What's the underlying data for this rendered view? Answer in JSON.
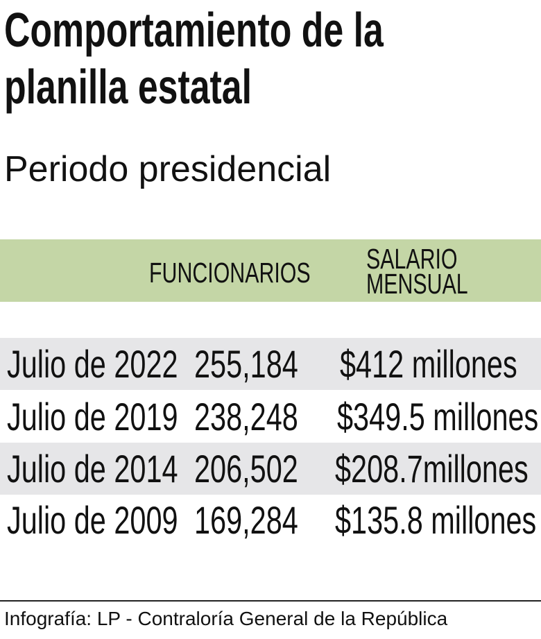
{
  "chart_data": {
    "type": "table",
    "title": "Comportamiento de la planilla estatal",
    "title_lines": [
      "Comportamiento de la",
      "planilla estatal"
    ],
    "subtitle": "Periodo presidencial",
    "columns": [
      "",
      "FUNCIONARIOS",
      "SALARIO MENSUAL"
    ],
    "column_header_lines": {
      "salario": [
        "SALARIO",
        "MENSUAL"
      ]
    },
    "rows": [
      {
        "periodo": "Julio de 2022",
        "funcionarios": "255,184",
        "salario": "$412 millones"
      },
      {
        "periodo": "Julio de 2019",
        "funcionarios": "238,248",
        "salario": "$349.5 millones"
      },
      {
        "periodo": "Julio de 2014",
        "funcionarios": "206,502",
        "salario": "$208.7millones"
      },
      {
        "periodo": "Julio de 2009",
        "funcionarios": "169,284",
        "salario": "$135.8 millones"
      }
    ],
    "source": "Infografía: LP - Contraloría General de la República"
  },
  "colors": {
    "header": "#c4d6a6",
    "stripe": "#e6e6e8"
  }
}
